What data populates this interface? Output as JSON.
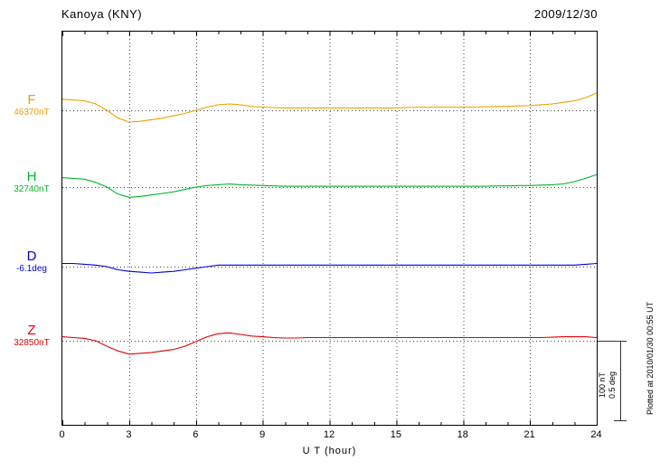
{
  "header": {
    "station": "Kanoya (KNY)",
    "date": "2009/12/30"
  },
  "axis": {
    "xlabel": "U T (hour)"
  },
  "scale_bar": {
    "nt": "100 nT",
    "deg": "0.5 deg"
  },
  "footer": {
    "plotted_at": "Plotted at 2010/01/30 00:55 UT"
  },
  "chart_data": {
    "type": "line",
    "title": "Kanoya (KNY) magnetogram",
    "subtitle": "2009/12/30",
    "xlabel": "U T (hour)",
    "xlim": [
      0,
      24
    ],
    "x_ticks": [
      0,
      3,
      6,
      9,
      12,
      15,
      18,
      21,
      24
    ],
    "grid": "dotted-vertical-at-3h",
    "scale": {
      "nT_per_div": 100,
      "deg_per_div": 0.5
    },
    "x": [
      0,
      0.5,
      1,
      1.5,
      2,
      2.5,
      3,
      3.5,
      4,
      4.5,
      5,
      5.5,
      6,
      6.5,
      7,
      7.5,
      8,
      8.5,
      9,
      9.5,
      10,
      10.5,
      11,
      11.5,
      12,
      12.5,
      13,
      13.5,
      14,
      14.5,
      15,
      15.5,
      16,
      16.5,
      17,
      17.5,
      18,
      18.5,
      19,
      19.5,
      20,
      20.5,
      21,
      21.5,
      22,
      22.5,
      23,
      23.5,
      24
    ],
    "series": [
      {
        "label": "F",
        "baseline_label": "46370nT",
        "baseline": 46370,
        "unit": "nT",
        "color": "#f0a000",
        "values": [
          46384,
          46383,
          46382,
          46378,
          46370,
          46360,
          46355,
          46356,
          46358,
          46360,
          46363,
          46366,
          46370,
          46374,
          46377,
          46378,
          46377,
          46375,
          46374,
          46373.5,
          46373,
          46373,
          46373,
          46373,
          46373,
          46373,
          46373,
          46373,
          46373,
          46373,
          46373,
          46373.5,
          46374,
          46374,
          46374,
          46374,
          46374,
          46374,
          46374.5,
          46375,
          46375,
          46375.5,
          46376,
          46377,
          46378,
          46380,
          46382,
          46386,
          46392
        ]
      },
      {
        "label": "H",
        "baseline_label": "32740nT",
        "baseline": 32740,
        "unit": "nT",
        "color": "#00b428",
        "values": [
          32752,
          32751,
          32750,
          32746,
          32740,
          32731,
          32727,
          32728,
          32730,
          32732,
          32734,
          32737,
          32740,
          32742,
          32743,
          32744,
          32743,
          32742.5,
          32742,
          32741.5,
          32741,
          32741,
          32741,
          32741,
          32741,
          32741,
          32741,
          32741,
          32741,
          32741,
          32741,
          32741,
          32741,
          32741,
          32741,
          32741,
          32741,
          32741,
          32741,
          32741.5,
          32741.5,
          32742,
          32742,
          32742.5,
          32743,
          32744,
          32747,
          32751,
          32756
        ]
      },
      {
        "label": "D",
        "baseline_label": "-6.1deg",
        "baseline": -6.1,
        "unit": "deg",
        "color": "#0000dc",
        "values": [
          -6.08,
          -6.08,
          -6.085,
          -6.09,
          -6.1,
          -6.12,
          -6.13,
          -6.135,
          -6.14,
          -6.135,
          -6.13,
          -6.12,
          -6.11,
          -6.1,
          -6.09,
          -6.09,
          -6.09,
          -6.09,
          -6.09,
          -6.09,
          -6.09,
          -6.09,
          -6.09,
          -6.09,
          -6.09,
          -6.09,
          -6.09,
          -6.09,
          -6.09,
          -6.09,
          -6.09,
          -6.09,
          -6.09,
          -6.09,
          -6.09,
          -6.09,
          -6.09,
          -6.09,
          -6.09,
          -6.09,
          -6.09,
          -6.09,
          -6.09,
          -6.09,
          -6.09,
          -6.09,
          -6.09,
          -6.085,
          -6.08
        ]
      },
      {
        "label": "Z",
        "baseline_label": "32850nT",
        "baseline": 32850,
        "unit": "nT",
        "color": "#e00000",
        "values": [
          32855,
          32854,
          32853,
          32850,
          32843,
          32837,
          32833,
          32834,
          32835,
          32837,
          32839,
          32843,
          32849,
          32855,
          32859,
          32860,
          32858,
          32856,
          32855,
          32854,
          32853.5,
          32853.5,
          32854,
          32854,
          32854,
          32854,
          32854,
          32854,
          32854,
          32854,
          32854,
          32854,
          32854,
          32854,
          32854,
          32854,
          32854,
          32854,
          32854,
          32854,
          32854,
          32854,
          32854,
          32854,
          32854.5,
          32855,
          32855,
          32855,
          32854
        ]
      }
    ]
  }
}
